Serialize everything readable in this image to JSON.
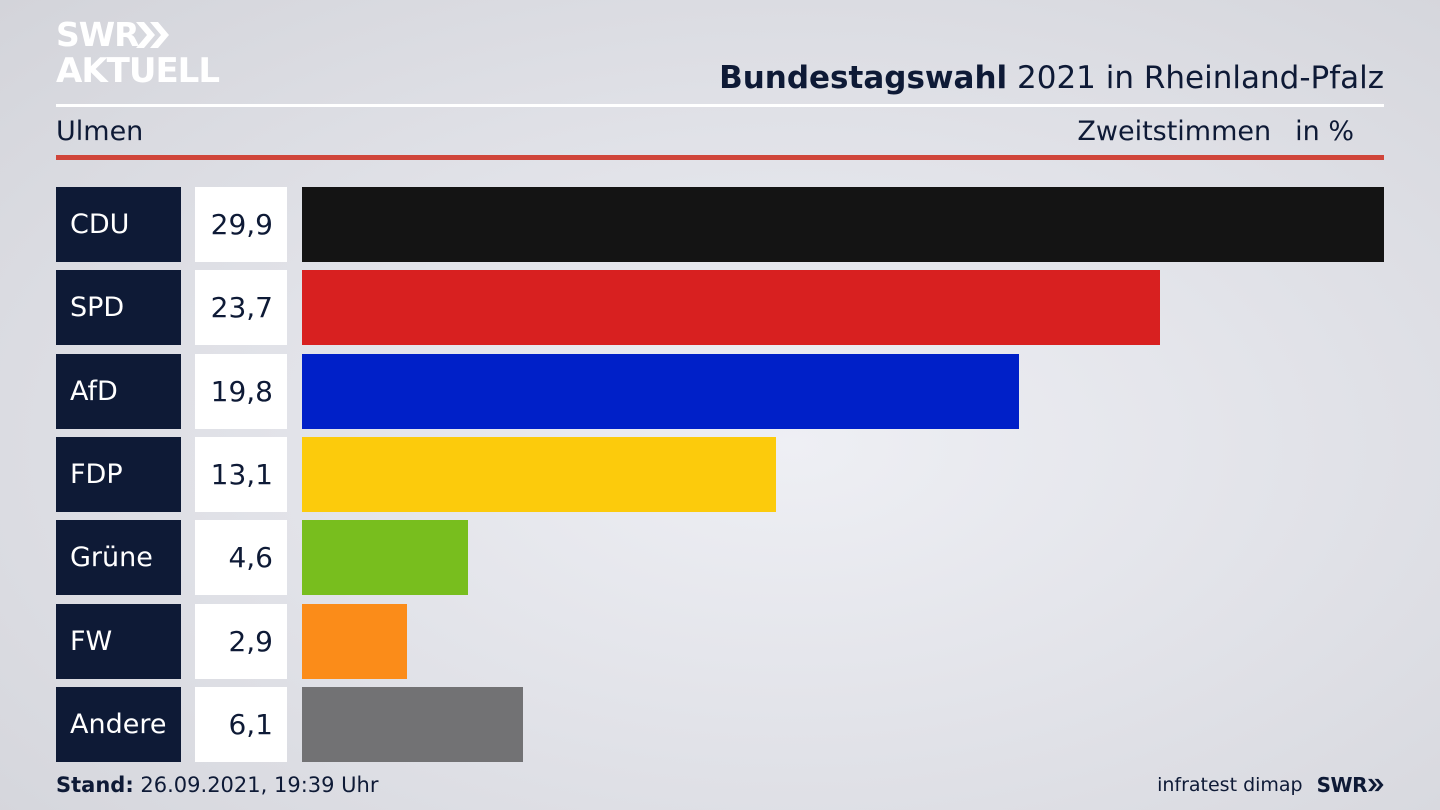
{
  "logo": {
    "line1": "SWR",
    "line2": "AKTUELL"
  },
  "header": {
    "title_bold": "Bundestagswahl",
    "title_rest": " 2021 in Rheinland-Pfalz",
    "region": "Ulmen",
    "measure": "Zweitstimmen",
    "unit": "in %"
  },
  "chart_data": {
    "type": "bar",
    "orientation": "horizontal",
    "categories": [
      "CDU",
      "SPD",
      "AfD",
      "FDP",
      "Grüne",
      "FW",
      "Andere"
    ],
    "values": [
      29.9,
      23.7,
      19.8,
      13.1,
      4.6,
      2.9,
      6.1
    ],
    "value_labels": [
      "29,9",
      "23,7",
      "19,8",
      "13,1",
      "4,6",
      "2,9",
      "6,1"
    ],
    "colors": [
      "#141414",
      "#d82020",
      "#0020c8",
      "#fccb0c",
      "#78be1e",
      "#fb8c19",
      "#727274"
    ],
    "xlim": [
      0,
      29.9
    ],
    "grid": false
  },
  "footer": {
    "stand_label": "Stand:",
    "stand_value": " 26.09.2021, 19:39 Uhr",
    "source": "infratest dimap",
    "logo": "SWR"
  },
  "icons": {
    "logo_arrows": "double-chevron-right-icon",
    "footer_arrows": "double-chevron-right-icon"
  }
}
